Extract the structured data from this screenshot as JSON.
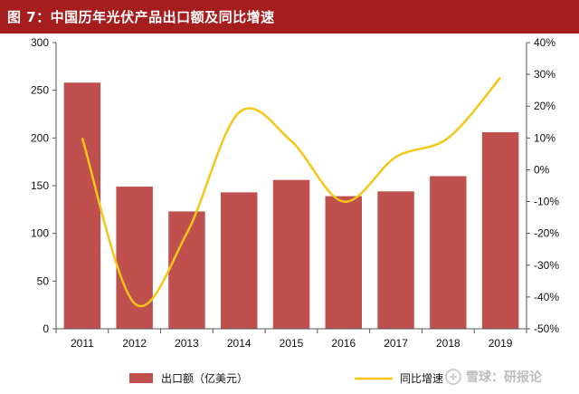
{
  "header": {
    "title": "图 7：中国历年光伏产品出口额及同比增速"
  },
  "watermark": {
    "text": "雪球：研报论",
    "icon": "snowball-logo-icon"
  },
  "colors": {
    "title_bg": "#a51d1d",
    "bar": "#c0504d",
    "line": "#f5c518"
  },
  "chart_data": {
    "type": "bar+line",
    "categories": [
      "2011",
      "2012",
      "2013",
      "2014",
      "2015",
      "2016",
      "2017",
      "2018",
      "2019"
    ],
    "series": [
      {
        "name": "出口额（亿美元）",
        "type": "bar",
        "axis": "left",
        "values": [
          258,
          149,
          123,
          143,
          156,
          139,
          144,
          160,
          206
        ]
      },
      {
        "name": "同比增速",
        "type": "line",
        "axis": "right",
        "values": [
          0.1,
          -0.42,
          -0.2,
          0.18,
          0.09,
          -0.1,
          0.04,
          0.1,
          0.29
        ]
      }
    ],
    "left_axis": {
      "ylim": [
        0,
        300
      ],
      "ticks": [
        0,
        50,
        100,
        150,
        200,
        250,
        300
      ],
      "tick_labels": [
        "0",
        "50",
        "100",
        "150",
        "200",
        "250",
        "300"
      ]
    },
    "right_axis": {
      "ylim": [
        -0.5,
        0.4
      ],
      "ticks": [
        -0.5,
        -0.4,
        -0.3,
        -0.2,
        -0.1,
        0,
        0.1,
        0.2,
        0.3,
        0.4
      ],
      "tick_labels": [
        "-50%",
        "-40%",
        "-30%",
        "-20%",
        "-10%",
        "0%",
        "10%",
        "20%",
        "30%",
        "40%"
      ]
    },
    "grid": false,
    "legend": {
      "position": "bottom",
      "labels": [
        "出口额（亿美元）",
        "同比增速"
      ]
    }
  }
}
